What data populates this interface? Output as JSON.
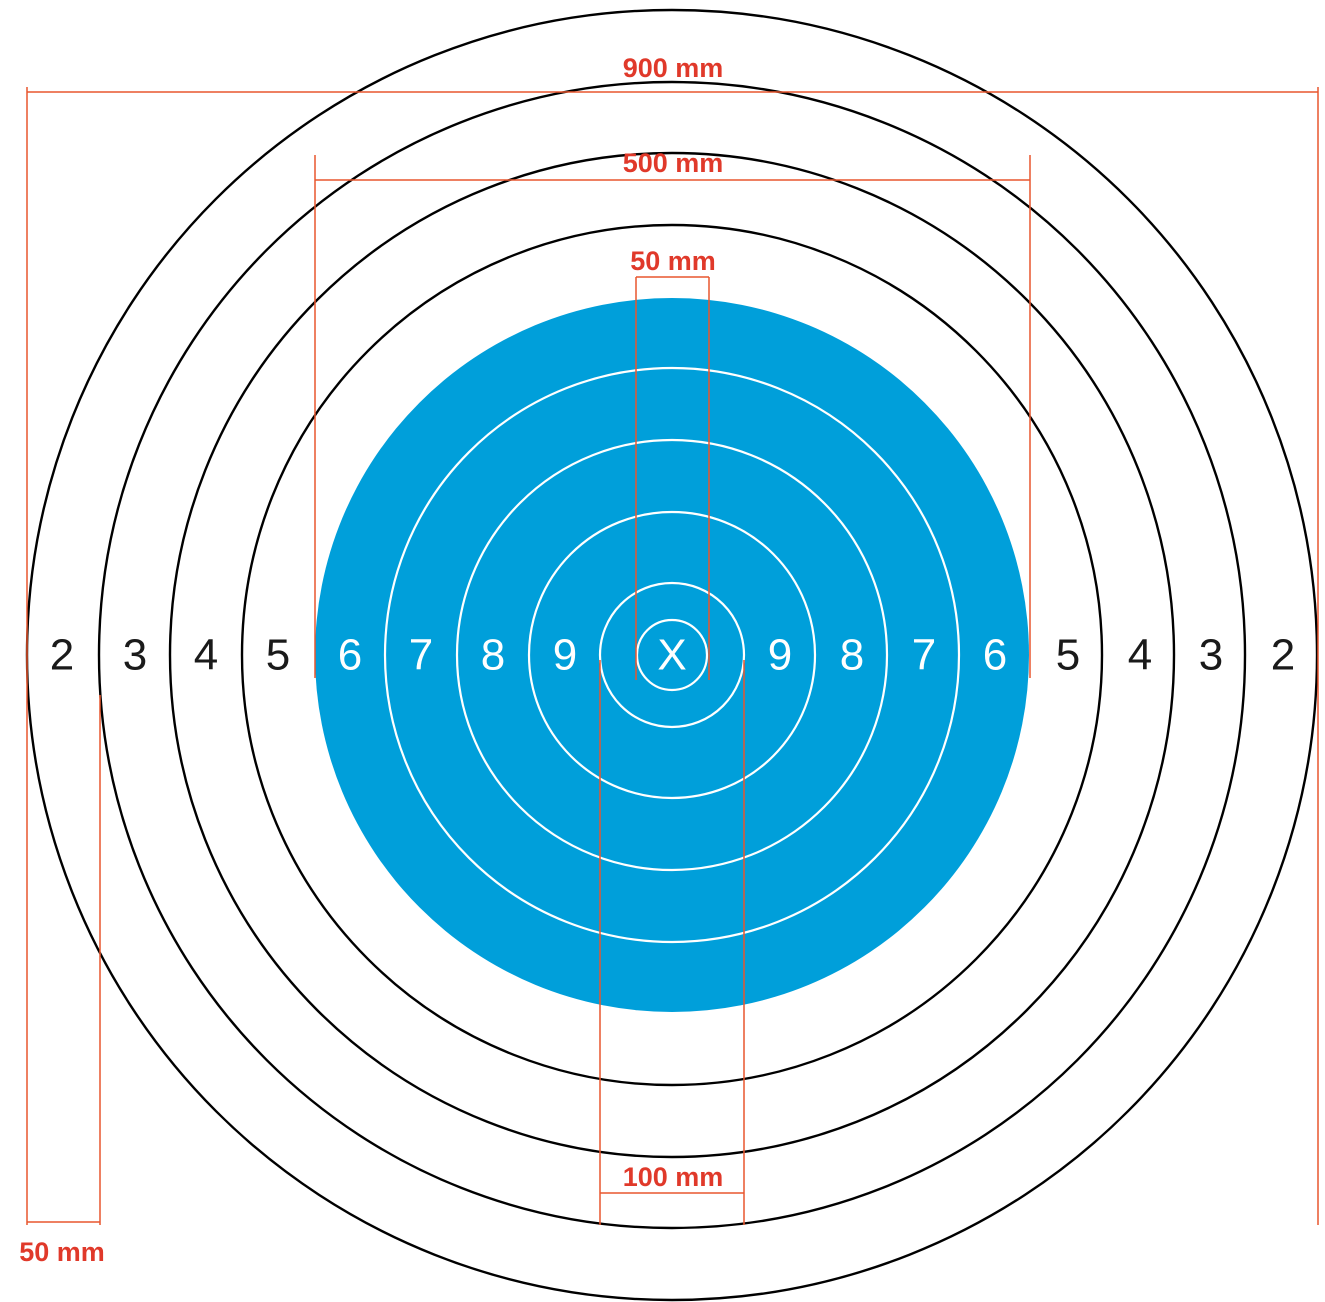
{
  "target": {
    "center_mark": "X",
    "black_zone_scores": [
      "2",
      "3",
      "4",
      "5"
    ],
    "blue_zone_scores": [
      "6",
      "7",
      "8",
      "9"
    ],
    "colors": {
      "black_zone_fill": "#ffffff",
      "black_zone_ring": "#000000",
      "aiming_mark_fill": "#009fda",
      "aiming_mark_ring": "#ffffff",
      "dimension_line": "#e8572e",
      "dimension_text": "#e0392a",
      "score_black": "#1a1a1a",
      "score_white": "#ffffff"
    }
  },
  "dimensions": {
    "outer_diameter": "900 mm",
    "ring_7_diameter": "500 mm",
    "ten_ring_diameter": "50 mm",
    "nine_ring_diameter": "100 mm",
    "ring_spacing": "50 mm"
  }
}
